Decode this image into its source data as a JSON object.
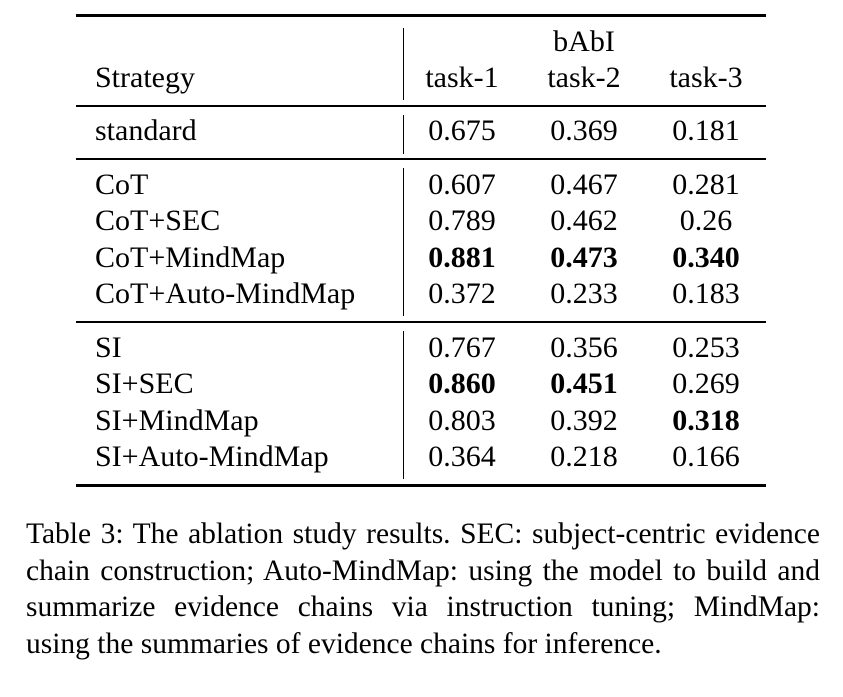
{
  "table": {
    "header": {
      "strategy_label": "Strategy",
      "group_label": "bAbI",
      "columns": [
        "task-1",
        "task-2",
        "task-3"
      ]
    },
    "groups": [
      {
        "rows": [
          {
            "strategy": "standard",
            "values": [
              "0.675",
              "0.369",
              "0.181"
            ],
            "bold": [
              false,
              false,
              false
            ]
          }
        ]
      },
      {
        "rows": [
          {
            "strategy": "CoT",
            "values": [
              "0.607",
              "0.467",
              "0.281"
            ],
            "bold": [
              false,
              false,
              false
            ]
          },
          {
            "strategy": "CoT+SEC",
            "values": [
              "0.789",
              "0.462",
              "0.26"
            ],
            "bold": [
              false,
              false,
              false
            ]
          },
          {
            "strategy": "CoT+MindMap",
            "values": [
              "0.881",
              "0.473",
              "0.340"
            ],
            "bold": [
              true,
              true,
              true
            ]
          },
          {
            "strategy": "CoT+Auto-MindMap",
            "values": [
              "0.372",
              "0.233",
              "0.183"
            ],
            "bold": [
              false,
              false,
              false
            ]
          }
        ]
      },
      {
        "rows": [
          {
            "strategy": "SI",
            "values": [
              "0.767",
              "0.356",
              "0.253"
            ],
            "bold": [
              false,
              false,
              false
            ]
          },
          {
            "strategy": "SI+SEC",
            "values": [
              "0.860",
              "0.451",
              "0.269"
            ],
            "bold": [
              true,
              true,
              false
            ]
          },
          {
            "strategy": "SI+MindMap",
            "values": [
              "0.803",
              "0.392",
              "0.318"
            ],
            "bold": [
              false,
              false,
              true
            ]
          },
          {
            "strategy": "SI+Auto-MindMap",
            "values": [
              "0.364",
              "0.218",
              "0.166"
            ],
            "bold": [
              false,
              false,
              false
            ]
          }
        ]
      }
    ]
  },
  "caption": "Table 3: The ablation study results. SEC: subject-centric evidence chain construction; Auto-MindMap: using the model to build and summarize evidence chains via instruction tuning; MindMap: using the summaries of evidence chains for inference."
}
